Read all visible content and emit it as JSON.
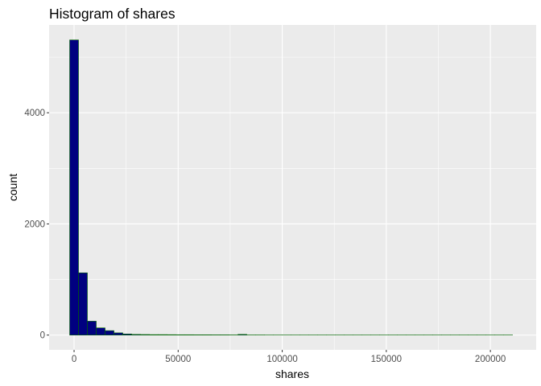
{
  "chart_data": {
    "type": "bar",
    "title": "Histogram of shares",
    "xlabel": "shares",
    "ylabel": "count",
    "binwidth": 4256,
    "bin_start": -2128,
    "counts": [
      5310,
      1120,
      250,
      130,
      80,
      40,
      20,
      12,
      10,
      8,
      8,
      7,
      6,
      6,
      5,
      5,
      4,
      4,
      3,
      12,
      2,
      2,
      1,
      1,
      1,
      1,
      1,
      1,
      1,
      1,
      1,
      1,
      1,
      1,
      1,
      1,
      1,
      1,
      1,
      1,
      1,
      1,
      1,
      1,
      1,
      1,
      1,
      1,
      1,
      1
    ],
    "xlim": [
      -12000,
      222000
    ],
    "ylim": [
      -265,
      5580
    ],
    "x_ticks": [
      0,
      50000,
      100000,
      150000,
      200000
    ],
    "x_tick_labels": [
      "0",
      "50000",
      "100000",
      "150000",
      "200000"
    ],
    "y_ticks": [
      0,
      2000,
      4000
    ],
    "y_tick_labels": [
      "0",
      "2000",
      "4000"
    ],
    "grid": true,
    "legend": "none",
    "colors": {
      "panel_background": "#ebebeb",
      "grid_line": "#ffffff",
      "bar_fill": "#000080",
      "bar_outline": "#006400",
      "tick_mark": "#333333"
    }
  }
}
